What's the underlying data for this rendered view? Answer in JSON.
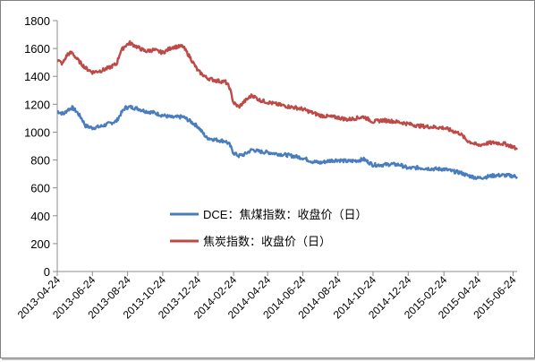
{
  "chart_data": {
    "type": "line",
    "title": "",
    "xlabel": "",
    "ylabel": "",
    "ylim": [
      0,
      1800
    ],
    "yticks": [
      0,
      200,
      400,
      600,
      800,
      1000,
      1200,
      1400,
      1600,
      1800
    ],
    "xlim": [
      "2013-04-24",
      "2015-07-01"
    ],
    "xtick_labels": [
      "2013-04-24",
      "2013-06-24",
      "2013-08-24",
      "2013-10-24",
      "2013-12-24",
      "2014-02-24",
      "2014-04-24",
      "2014-06-24",
      "2014-08-24",
      "2014-10-24",
      "2014-12-24",
      "2015-02-24",
      "2015-04-24",
      "2015-06-24"
    ],
    "grid": false,
    "legend_position": "center",
    "colors": {
      "coal": "#4a7dbe",
      "coke": "#be4a48",
      "axis": "#8c8c8c"
    },
    "series": [
      {
        "name": "DCE：焦煤指数：收盘价（日）",
        "color": "#4a7dbe",
        "points": [
          [
            "2013-04-24",
            1150
          ],
          [
            "2013-05-05",
            1130
          ],
          [
            "2013-05-12",
            1160
          ],
          [
            "2013-05-20",
            1175
          ],
          [
            "2013-05-27",
            1150
          ],
          [
            "2013-06-05",
            1100
          ],
          [
            "2013-06-12",
            1045
          ],
          [
            "2013-06-24",
            1030
          ],
          [
            "2013-07-08",
            1040
          ],
          [
            "2013-07-22",
            1060
          ],
          [
            "2013-08-05",
            1080
          ],
          [
            "2013-08-12",
            1130
          ],
          [
            "2013-08-20",
            1175
          ],
          [
            "2013-08-28",
            1180
          ],
          [
            "2013-09-10",
            1170
          ],
          [
            "2013-09-24",
            1150
          ],
          [
            "2013-10-08",
            1140
          ],
          [
            "2013-10-24",
            1120
          ],
          [
            "2013-11-10",
            1105
          ],
          [
            "2013-11-28",
            1110
          ],
          [
            "2013-12-10",
            1080
          ],
          [
            "2013-12-24",
            1040
          ],
          [
            "2014-01-08",
            960
          ],
          [
            "2014-01-24",
            945
          ],
          [
            "2014-02-10",
            935
          ],
          [
            "2014-02-17",
            910
          ],
          [
            "2014-02-24",
            850
          ],
          [
            "2014-03-05",
            830
          ],
          [
            "2014-03-15",
            840
          ],
          [
            "2014-03-28",
            875
          ],
          [
            "2014-04-10",
            860
          ],
          [
            "2014-04-24",
            855
          ],
          [
            "2014-05-10",
            845
          ],
          [
            "2014-05-28",
            835
          ],
          [
            "2014-06-12",
            825
          ],
          [
            "2014-06-24",
            815
          ],
          [
            "2014-07-10",
            790
          ],
          [
            "2014-07-24",
            780
          ],
          [
            "2014-08-10",
            795
          ],
          [
            "2014-08-24",
            800
          ],
          [
            "2014-09-10",
            790
          ],
          [
            "2014-09-24",
            795
          ],
          [
            "2014-10-08",
            805
          ],
          [
            "2014-10-24",
            765
          ],
          [
            "2014-11-10",
            765
          ],
          [
            "2014-11-24",
            770
          ],
          [
            "2014-12-10",
            765
          ],
          [
            "2014-12-24",
            740
          ],
          [
            "2015-01-10",
            745
          ],
          [
            "2015-01-24",
            740
          ],
          [
            "2015-02-10",
            735
          ],
          [
            "2015-02-24",
            735
          ],
          [
            "2015-03-10",
            720
          ],
          [
            "2015-03-24",
            710
          ],
          [
            "2015-04-05",
            690
          ],
          [
            "2015-04-24",
            670
          ],
          [
            "2015-05-10",
            680
          ],
          [
            "2015-05-24",
            690
          ],
          [
            "2015-06-10",
            690
          ],
          [
            "2015-06-24",
            685
          ],
          [
            "2015-07-01",
            680
          ]
        ]
      },
      {
        "name": "焦炭指数：收盘价（日）",
        "color": "#be4a48",
        "points": [
          [
            "2013-04-24",
            1520
          ],
          [
            "2013-05-03",
            1490
          ],
          [
            "2013-05-12",
            1560
          ],
          [
            "2013-05-20",
            1570
          ],
          [
            "2013-05-27",
            1530
          ],
          [
            "2013-06-05",
            1490
          ],
          [
            "2013-06-12",
            1460
          ],
          [
            "2013-06-24",
            1430
          ],
          [
            "2013-07-08",
            1440
          ],
          [
            "2013-07-22",
            1460
          ],
          [
            "2013-08-05",
            1490
          ],
          [
            "2013-08-12",
            1580
          ],
          [
            "2013-08-20",
            1620
          ],
          [
            "2013-08-28",
            1640
          ],
          [
            "2013-09-10",
            1610
          ],
          [
            "2013-09-24",
            1580
          ],
          [
            "2013-10-08",
            1590
          ],
          [
            "2013-10-24",
            1570
          ],
          [
            "2013-11-10",
            1610
          ],
          [
            "2013-11-28",
            1615
          ],
          [
            "2013-12-10",
            1540
          ],
          [
            "2013-12-24",
            1440
          ],
          [
            "2014-01-08",
            1390
          ],
          [
            "2014-01-24",
            1370
          ],
          [
            "2014-02-10",
            1360
          ],
          [
            "2014-02-17",
            1320
          ],
          [
            "2014-02-24",
            1210
          ],
          [
            "2014-03-05",
            1180
          ],
          [
            "2014-03-15",
            1220
          ],
          [
            "2014-03-28",
            1265
          ],
          [
            "2014-04-10",
            1230
          ],
          [
            "2014-04-24",
            1215
          ],
          [
            "2014-05-10",
            1200
          ],
          [
            "2014-05-28",
            1185
          ],
          [
            "2014-06-12",
            1175
          ],
          [
            "2014-06-24",
            1165
          ],
          [
            "2014-07-10",
            1140
          ],
          [
            "2014-07-24",
            1120
          ],
          [
            "2014-08-10",
            1110
          ],
          [
            "2014-08-24",
            1105
          ],
          [
            "2014-09-10",
            1090
          ],
          [
            "2014-09-24",
            1100
          ],
          [
            "2014-10-08",
            1110
          ],
          [
            "2014-10-24",
            1075
          ],
          [
            "2014-11-10",
            1085
          ],
          [
            "2014-11-24",
            1080
          ],
          [
            "2014-12-10",
            1070
          ],
          [
            "2014-12-24",
            1060
          ],
          [
            "2015-01-10",
            1045
          ],
          [
            "2015-01-24",
            1040
          ],
          [
            "2015-02-10",
            1035
          ],
          [
            "2015-02-24",
            1030
          ],
          [
            "2015-03-10",
            1010
          ],
          [
            "2015-03-24",
            990
          ],
          [
            "2015-04-05",
            940
          ],
          [
            "2015-04-24",
            905
          ],
          [
            "2015-05-10",
            920
          ],
          [
            "2015-05-24",
            925
          ],
          [
            "2015-06-10",
            915
          ],
          [
            "2015-06-24",
            895
          ],
          [
            "2015-07-01",
            875
          ]
        ]
      }
    ]
  }
}
